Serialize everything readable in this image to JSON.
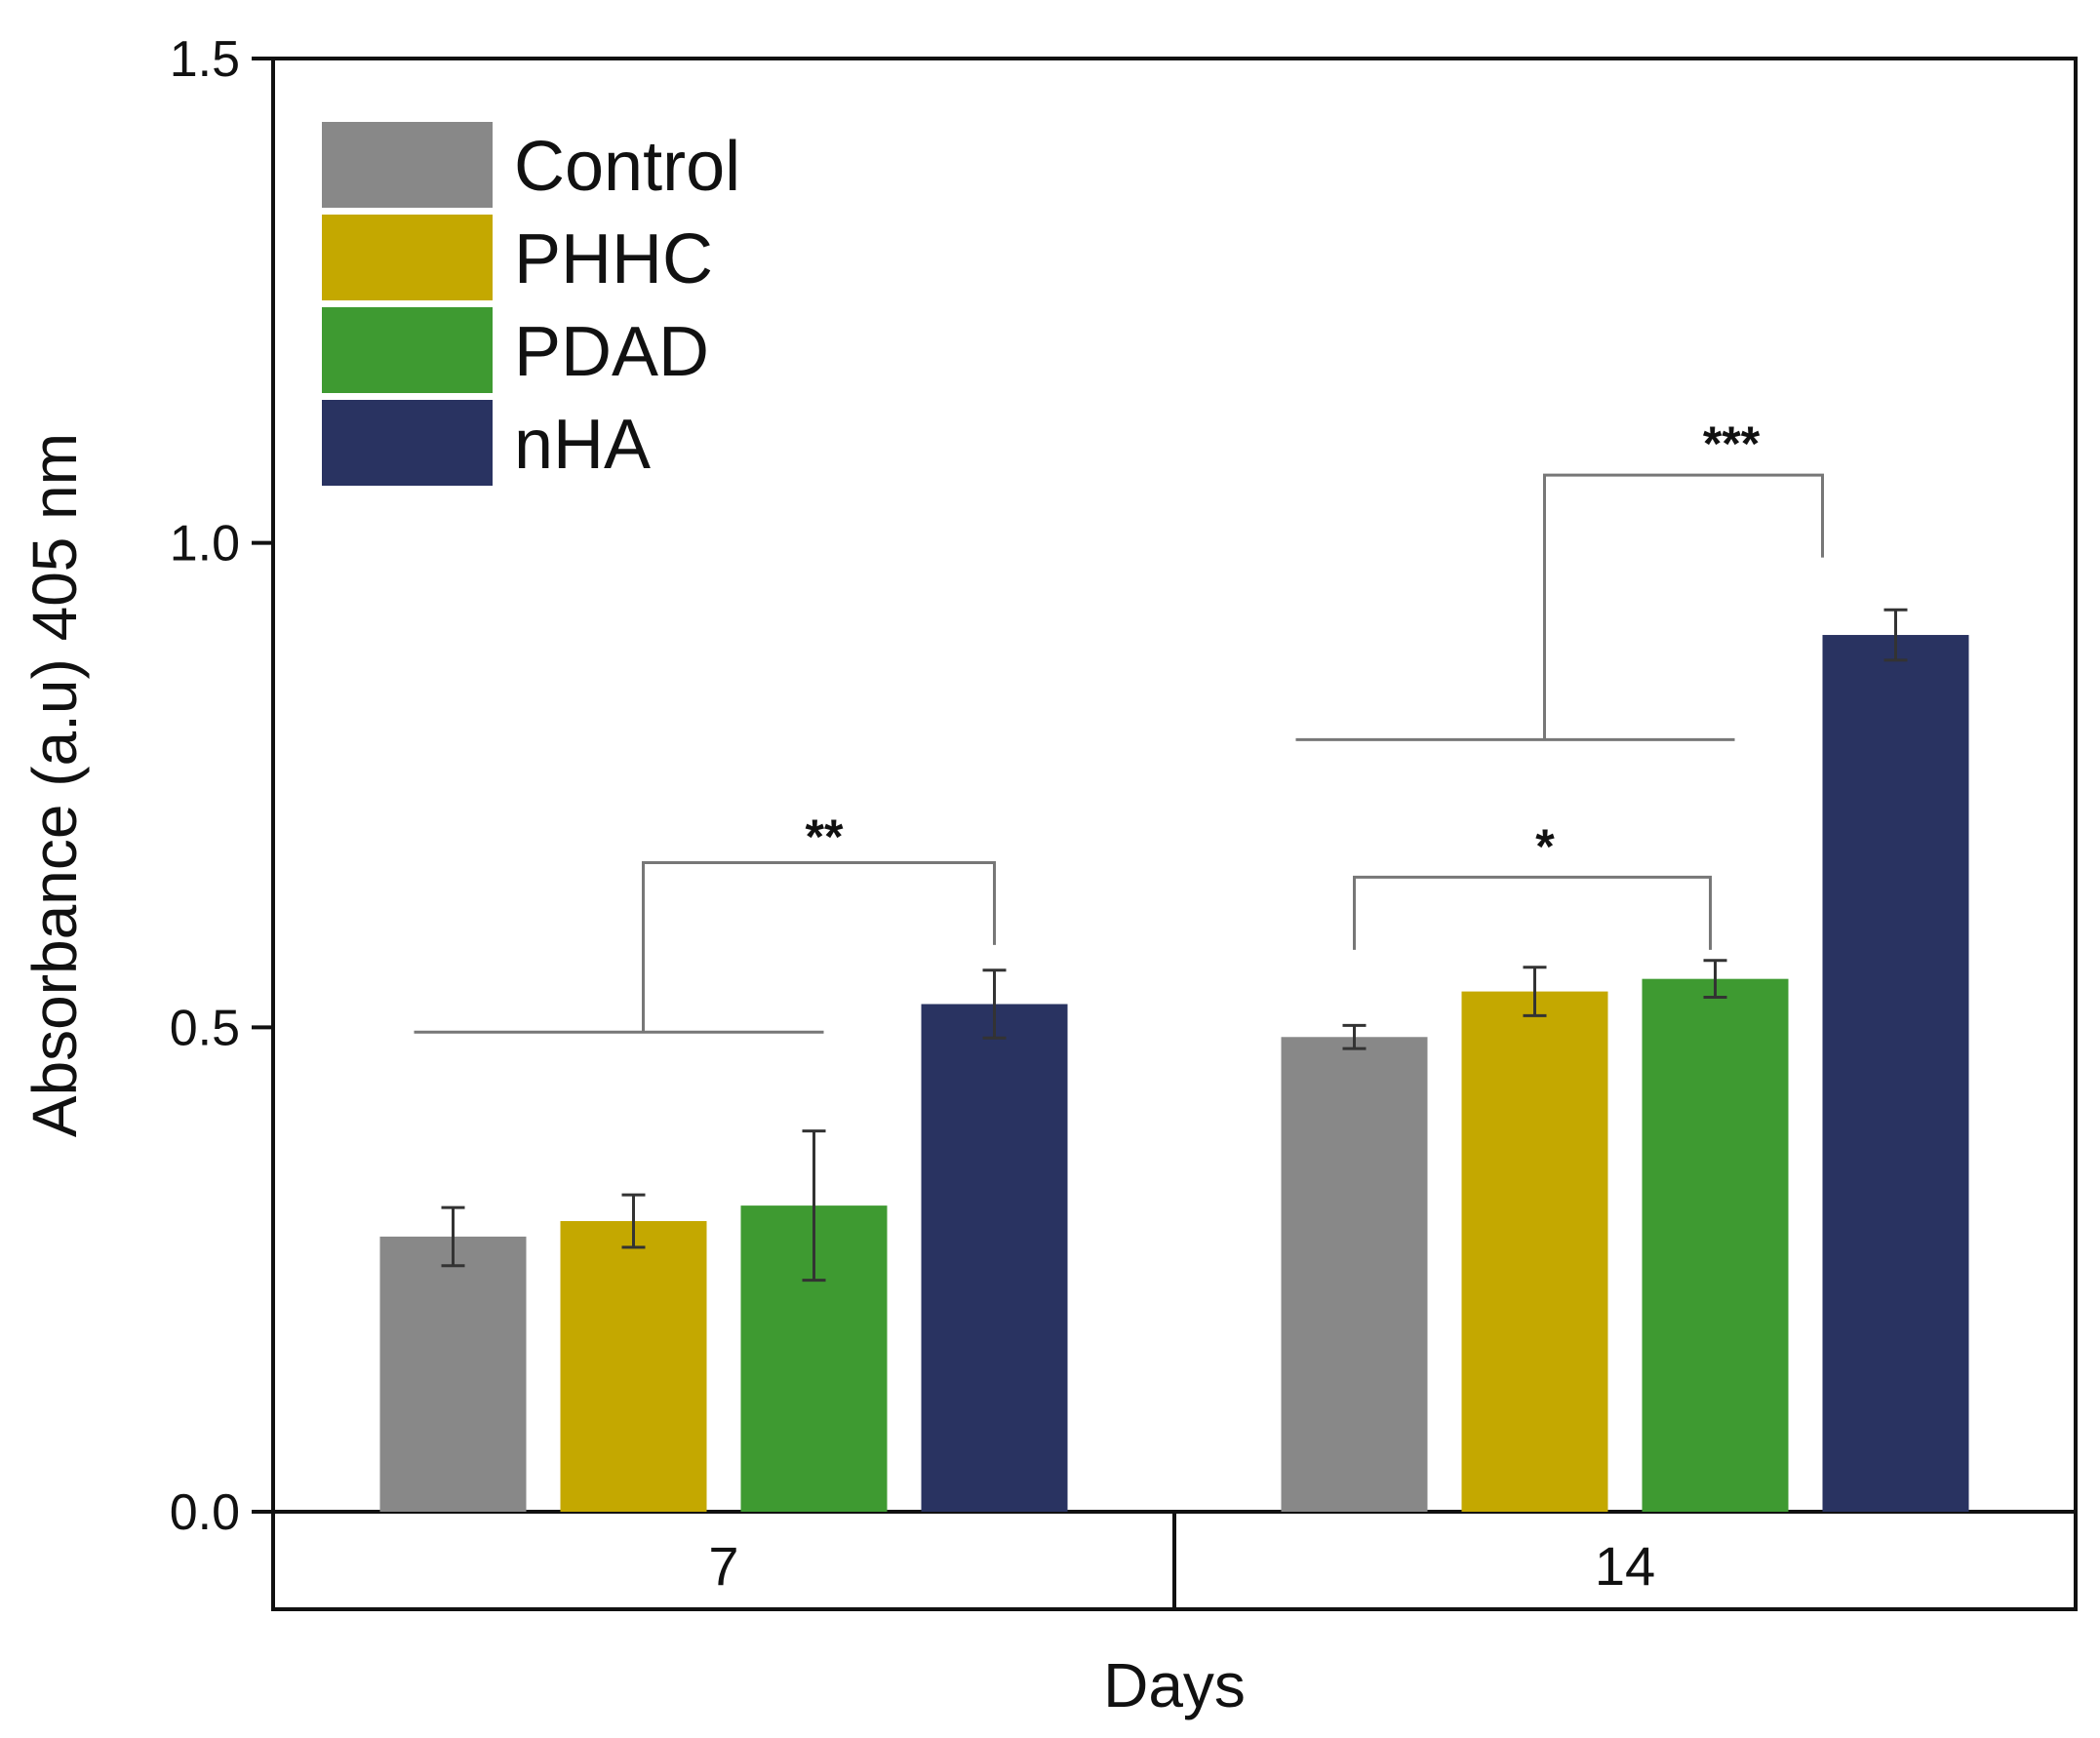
{
  "chart_data": {
    "type": "bar",
    "title": "",
    "xlabel": "Days",
    "ylabel": "Absorbance (a.u) 405 nm",
    "categories": [
      "7",
      "14"
    ],
    "ylim": [
      0,
      1.5
    ],
    "yticks": [
      "0.0",
      "0.5",
      "1.0",
      "1.5"
    ],
    "legend_position": "top-left",
    "series": [
      {
        "name": "Control",
        "color": "#888888",
        "values": [
          0.284,
          0.49
        ],
        "errors": [
          0.03,
          0.012
        ]
      },
      {
        "name": "PHHC",
        "color": "#c4a800",
        "values": [
          0.3,
          0.537
        ],
        "errors": [
          0.027,
          0.025
        ]
      },
      {
        "name": "PDAD",
        "color": "#3e9a31",
        "values": [
          0.316,
          0.55
        ],
        "errors": [
          0.077,
          0.019
        ]
      },
      {
        "name": "nHA",
        "color": "#293361",
        "values": [
          0.524,
          0.905
        ],
        "errors": [
          0.035,
          0.026
        ]
      }
    ],
    "significance": [
      {
        "label": "**",
        "day": "7",
        "compare": "Control–PDAD vs nHA"
      },
      {
        "label": "*",
        "day": "14",
        "compare": "Control vs PDAD"
      },
      {
        "label": "***",
        "day": "14",
        "compare": "Control–PDAD vs nHA"
      }
    ]
  }
}
